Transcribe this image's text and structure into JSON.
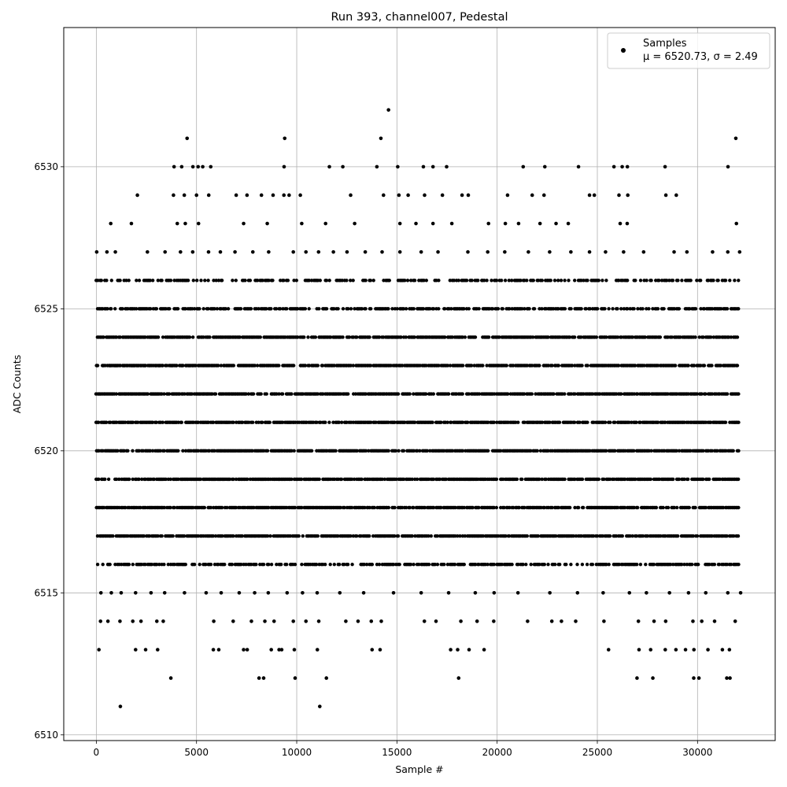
{
  "chart_data": {
    "type": "scatter",
    "title": "Run 393, channel007, Pedestal",
    "xlabel": "Sample #",
    "ylabel": "ADC Counts",
    "xlim": [
      -1625,
      33875
    ],
    "ylim": [
      6509.8,
      6534.9
    ],
    "x_ticks": [
      0,
      5000,
      10000,
      15000,
      20000,
      25000,
      30000
    ],
    "y_ticks": [
      6510,
      6515,
      6520,
      6525,
      6530
    ],
    "grid": true,
    "legend": {
      "placement": "top-right",
      "entries": [
        {
          "line1": "Samples",
          "line2": "μ = 6520.73, σ = 2.49"
        }
      ]
    },
    "marker_color": "#000000",
    "sample_count": 32200,
    "series": [
      {
        "name": "Samples",
        "bands": [
          {
            "y": 6516,
            "x_range": [
              0,
              32100
            ],
            "density": "high"
          },
          {
            "y": 6517,
            "x_range": [
              0,
              32100
            ],
            "density": "full"
          },
          {
            "y": 6518,
            "x_range": [
              0,
              32100
            ],
            "density": "full"
          },
          {
            "y": 6519,
            "x_range": [
              0,
              32100
            ],
            "density": "full"
          },
          {
            "y": 6520,
            "x_range": [
              0,
              32100
            ],
            "density": "full"
          },
          {
            "y": 6521,
            "x_range": [
              0,
              32100
            ],
            "density": "full"
          },
          {
            "y": 6522,
            "x_range": [
              0,
              32100
            ],
            "density": "full"
          },
          {
            "y": 6523,
            "x_range": [
              0,
              32100
            ],
            "density": "full"
          },
          {
            "y": 6524,
            "x_range": [
              0,
              32100
            ],
            "density": "full"
          },
          {
            "y": 6525,
            "x_range": [
              0,
              32100
            ],
            "density": "high"
          },
          {
            "y": 6526,
            "x_range": [
              0,
              32100
            ],
            "density": "medium"
          }
        ],
        "points": [
          [
            1200,
            6511
          ],
          [
            11150,
            6511
          ],
          [
            3720,
            6512
          ],
          [
            8120,
            6512
          ],
          [
            8350,
            6512
          ],
          [
            9920,
            6512
          ],
          [
            11480,
            6512
          ],
          [
            18080,
            6512
          ],
          [
            26980,
            6512
          ],
          [
            27770,
            6512
          ],
          [
            29810,
            6512
          ],
          [
            30070,
            6512
          ],
          [
            31460,
            6512
          ],
          [
            31620,
            6512
          ],
          [
            130,
            6513
          ],
          [
            1960,
            6513
          ],
          [
            2460,
            6513
          ],
          [
            3060,
            6513
          ],
          [
            5840,
            6513
          ],
          [
            6110,
            6513
          ],
          [
            7350,
            6513
          ],
          [
            7530,
            6513
          ],
          [
            8730,
            6513
          ],
          [
            9120,
            6513
          ],
          [
            9250,
            6513
          ],
          [
            9880,
            6513
          ],
          [
            11030,
            6513
          ],
          [
            13760,
            6513
          ],
          [
            14160,
            6513
          ],
          [
            17680,
            6513
          ],
          [
            18030,
            6513
          ],
          [
            18600,
            6513
          ],
          [
            19350,
            6513
          ],
          [
            25560,
            6513
          ],
          [
            27080,
            6513
          ],
          [
            27660,
            6513
          ],
          [
            28390,
            6513
          ],
          [
            28920,
            6513
          ],
          [
            29400,
            6513
          ],
          [
            29820,
            6513
          ],
          [
            30520,
            6513
          ],
          [
            31240,
            6513
          ],
          [
            31590,
            6513
          ],
          [
            210,
            6514
          ],
          [
            580,
            6514
          ],
          [
            1180,
            6514
          ],
          [
            1820,
            6514
          ],
          [
            2230,
            6514
          ],
          [
            3020,
            6514
          ],
          [
            3340,
            6514
          ],
          [
            5860,
            6514
          ],
          [
            6830,
            6514
          ],
          [
            7740,
            6514
          ],
          [
            8410,
            6514
          ],
          [
            8870,
            6514
          ],
          [
            9830,
            6514
          ],
          [
            10460,
            6514
          ],
          [
            11100,
            6514
          ],
          [
            12450,
            6514
          ],
          [
            13060,
            6514
          ],
          [
            13720,
            6514
          ],
          [
            14220,
            6514
          ],
          [
            16370,
            6514
          ],
          [
            16950,
            6514
          ],
          [
            18190,
            6514
          ],
          [
            19000,
            6514
          ],
          [
            19830,
            6514
          ],
          [
            21520,
            6514
          ],
          [
            22730,
            6514
          ],
          [
            23210,
            6514
          ],
          [
            23920,
            6514
          ],
          [
            25330,
            6514
          ],
          [
            27050,
            6514
          ],
          [
            27830,
            6514
          ],
          [
            28410,
            6514
          ],
          [
            29770,
            6514
          ],
          [
            30210,
            6514
          ],
          [
            30850,
            6514
          ],
          [
            31880,
            6514
          ],
          [
            230,
            6515
          ],
          [
            750,
            6515
          ],
          [
            1240,
            6515
          ],
          [
            1960,
            6515
          ],
          [
            2730,
            6515
          ],
          [
            3410,
            6515
          ],
          [
            4400,
            6515
          ],
          [
            5480,
            6515
          ],
          [
            6230,
            6515
          ],
          [
            7130,
            6515
          ],
          [
            7900,
            6515
          ],
          [
            8580,
            6515
          ],
          [
            9520,
            6515
          ],
          [
            10290,
            6515
          ],
          [
            11020,
            6515
          ],
          [
            12150,
            6515
          ],
          [
            13340,
            6515
          ],
          [
            14830,
            6515
          ],
          [
            16210,
            6515
          ],
          [
            17580,
            6515
          ],
          [
            18910,
            6515
          ],
          [
            19850,
            6515
          ],
          [
            21040,
            6515
          ],
          [
            22630,
            6515
          ],
          [
            24010,
            6515
          ],
          [
            25290,
            6515
          ],
          [
            26600,
            6515
          ],
          [
            27450,
            6515
          ],
          [
            28600,
            6515
          ],
          [
            29550,
            6515
          ],
          [
            30410,
            6515
          ],
          [
            31510,
            6515
          ],
          [
            32150,
            6515
          ],
          [
            20,
            6527
          ],
          [
            530,
            6527
          ],
          [
            950,
            6527
          ],
          [
            2550,
            6527
          ],
          [
            3430,
            6527
          ],
          [
            4200,
            6527
          ],
          [
            4810,
            6527
          ],
          [
            5600,
            6527
          ],
          [
            6190,
            6527
          ],
          [
            6920,
            6527
          ],
          [
            7810,
            6527
          ],
          [
            8600,
            6527
          ],
          [
            9830,
            6527
          ],
          [
            10460,
            6527
          ],
          [
            11090,
            6527
          ],
          [
            11830,
            6527
          ],
          [
            12510,
            6527
          ],
          [
            13420,
            6527
          ],
          [
            14260,
            6527
          ],
          [
            15150,
            6527
          ],
          [
            16210,
            6527
          ],
          [
            17050,
            6527
          ],
          [
            18540,
            6527
          ],
          [
            19530,
            6527
          ],
          [
            20380,
            6527
          ],
          [
            21560,
            6527
          ],
          [
            22620,
            6527
          ],
          [
            23680,
            6527
          ],
          [
            24610,
            6527
          ],
          [
            25410,
            6527
          ],
          [
            26310,
            6527
          ],
          [
            27310,
            6527
          ],
          [
            28830,
            6527
          ],
          [
            29470,
            6527
          ],
          [
            30750,
            6527
          ],
          [
            31510,
            6527
          ],
          [
            32100,
            6527
          ],
          [
            720,
            6528
          ],
          [
            1750,
            6528
          ],
          [
            4040,
            6528
          ],
          [
            4440,
            6528
          ],
          [
            5100,
            6528
          ],
          [
            7350,
            6528
          ],
          [
            8530,
            6528
          ],
          [
            10250,
            6528
          ],
          [
            11440,
            6528
          ],
          [
            12890,
            6528
          ],
          [
            15150,
            6528
          ],
          [
            15950,
            6528
          ],
          [
            16800,
            6528
          ],
          [
            17740,
            6528
          ],
          [
            19570,
            6528
          ],
          [
            20410,
            6528
          ],
          [
            21070,
            6528
          ],
          [
            22140,
            6528
          ],
          [
            22940,
            6528
          ],
          [
            23550,
            6528
          ],
          [
            26140,
            6528
          ],
          [
            26490,
            6528
          ],
          [
            31940,
            6528
          ],
          [
            2050,
            6529
          ],
          [
            3850,
            6529
          ],
          [
            4390,
            6529
          ],
          [
            5000,
            6529
          ],
          [
            5610,
            6529
          ],
          [
            6980,
            6529
          ],
          [
            7520,
            6529
          ],
          [
            8240,
            6529
          ],
          [
            8820,
            6529
          ],
          [
            9360,
            6529
          ],
          [
            9620,
            6529
          ],
          [
            10180,
            6529
          ],
          [
            12690,
            6529
          ],
          [
            14330,
            6529
          ],
          [
            15100,
            6529
          ],
          [
            15560,
            6529
          ],
          [
            16380,
            6529
          ],
          [
            17270,
            6529
          ],
          [
            18250,
            6529
          ],
          [
            18560,
            6529
          ],
          [
            20520,
            6529
          ],
          [
            21750,
            6529
          ],
          [
            22340,
            6529
          ],
          [
            24610,
            6529
          ],
          [
            24850,
            6529
          ],
          [
            26080,
            6529
          ],
          [
            26520,
            6529
          ],
          [
            28420,
            6529
          ],
          [
            28940,
            6529
          ],
          [
            3880,
            6530
          ],
          [
            4260,
            6530
          ],
          [
            4820,
            6530
          ],
          [
            5080,
            6530
          ],
          [
            5310,
            6530
          ],
          [
            5710,
            6530
          ],
          [
            9370,
            6530
          ],
          [
            11630,
            6530
          ],
          [
            12300,
            6530
          ],
          [
            14000,
            6530
          ],
          [
            15040,
            6530
          ],
          [
            16320,
            6530
          ],
          [
            16800,
            6530
          ],
          [
            17480,
            6530
          ],
          [
            21300,
            6530
          ],
          [
            22380,
            6530
          ],
          [
            24060,
            6530
          ],
          [
            25830,
            6530
          ],
          [
            26240,
            6530
          ],
          [
            26500,
            6530
          ],
          [
            28380,
            6530
          ],
          [
            31520,
            6530
          ],
          [
            4530,
            6531
          ],
          [
            9400,
            6531
          ],
          [
            14200,
            6531
          ],
          [
            31910,
            6531
          ],
          [
            14580,
            6532
          ]
        ]
      }
    ]
  }
}
